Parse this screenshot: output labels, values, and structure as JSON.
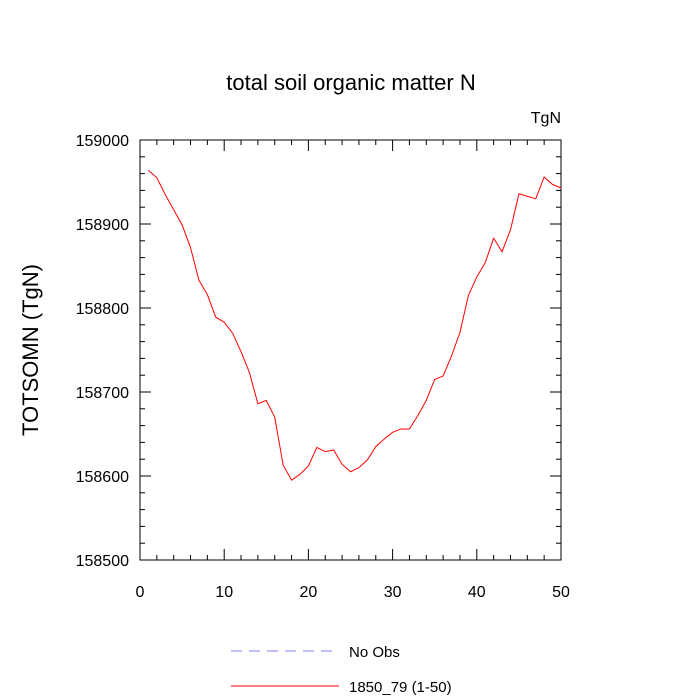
{
  "chart_data": {
    "type": "line",
    "title": "total soil organic matter N",
    "units_label": "TgN",
    "xlabel": "",
    "ylabel": "TOTSOMN  (TgN)",
    "xlim": [
      0,
      50
    ],
    "ylim": [
      158500,
      159000
    ],
    "x_ticks": [
      0,
      10,
      20,
      30,
      40,
      50
    ],
    "x_tick_labels": [
      "0",
      "10",
      "20",
      "30",
      "40",
      "50"
    ],
    "y_ticks": [
      158500,
      158600,
      158700,
      158800,
      158900,
      159000
    ],
    "y_tick_labels": [
      "158500",
      "158600",
      "158700",
      "158800",
      "158900",
      "159000"
    ],
    "x_minor_step": 2,
    "y_minor_step": 20,
    "grid": false,
    "legend_position": "bottom",
    "series": [
      {
        "name": "No Obs",
        "color": "#8080ff",
        "dash": "dashed",
        "x": [],
        "values": []
      },
      {
        "name": "1850_79 (1-50)",
        "color": "#ff0000",
        "dash": "solid",
        "x": [
          1,
          2,
          3,
          4,
          5,
          6,
          7,
          8,
          9,
          10,
          11,
          12,
          13,
          14,
          15,
          16,
          17,
          18,
          19,
          20,
          21,
          22,
          23,
          24,
          25,
          26,
          27,
          28,
          29,
          30,
          31,
          32,
          33,
          34,
          35,
          36,
          37,
          38,
          39,
          40,
          41,
          42,
          43,
          44,
          45,
          46,
          47,
          48,
          49,
          50
        ],
        "values": [
          158964,
          158955,
          158935,
          158917,
          158899,
          158872,
          158833,
          158816,
          158789,
          158783,
          158770,
          158748,
          158723,
          158686,
          158690,
          158670,
          158613,
          158595,
          158602,
          158612,
          158634,
          158629,
          158631,
          158614,
          158605,
          158610,
          158619,
          158635,
          158644,
          158652,
          158656,
          158656,
          158672,
          158690,
          158715,
          158719,
          158743,
          158771,
          158815,
          158837,
          158854,
          158883,
          158867,
          158893,
          158936,
          158933,
          158930,
          158956,
          158947,
          158943
        ]
      }
    ]
  }
}
